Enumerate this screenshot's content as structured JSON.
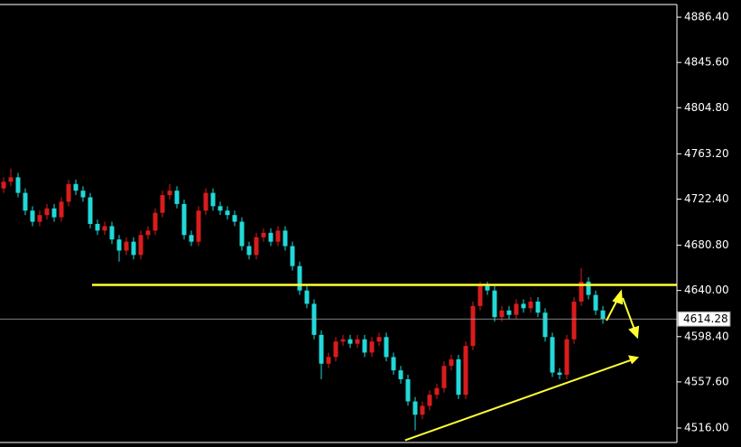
{
  "chart_data": {
    "type": "candlestick",
    "up_color": "#d91c1c",
    "down_color": "#22d8d8",
    "ylim": [
      4498.9,
      4901.9
    ],
    "yticks": [
      {
        "value": 4886.4,
        "label": "4886.40"
      },
      {
        "value": 4845.6,
        "label": "4845.60"
      },
      {
        "value": 4804.8,
        "label": "4804.80"
      },
      {
        "value": 4763.2,
        "label": "4763.20"
      },
      {
        "value": 4722.4,
        "label": "4722.40"
      },
      {
        "value": 4680.8,
        "label": "4680.80"
      },
      {
        "value": 4640,
        "label": "4640.00"
      },
      {
        "value": 4598.4,
        "label": "4598.40"
      },
      {
        "value": 4557.6,
        "label": "4557.60"
      },
      {
        "value": 4516,
        "label": "4516.00"
      }
    ],
    "open": [
      4732,
      4738,
      4742,
      4728,
      4712,
      4702,
      4708,
      4714,
      4706,
      4720,
      4736,
      4730,
      4724,
      4700,
      4694,
      4698,
      4686,
      4676,
      4684,
      4672,
      4690,
      4694,
      4710,
      4726,
      4730,
      4718,
      4690,
      4684,
      4712,
      4728,
      4716,
      4712,
      4708,
      4702,
      4680,
      4672,
      4688,
      4692,
      4684,
      4694,
      4680,
      4662,
      4640,
      4628,
      4600,
      4574,
      4580,
      4594,
      4596,
      4592,
      4596,
      4584,
      4594,
      4598,
      4580,
      4568,
      4560,
      4540,
      4528,
      4536,
      4546,
      4552,
      4572,
      4578,
      4546,
      4590,
      4626,
      4644,
      4640,
      4616,
      4622,
      4618,
      4628,
      4624,
      4630,
      4620,
      4598,
      4566,
      4564,
      4596,
      4630,
      4648,
      4636,
      4622
    ],
    "high": [
      4742,
      4750,
      4746,
      4732,
      4716,
      4712,
      4718,
      4718,
      4724,
      4740,
      4740,
      4734,
      4728,
      4704,
      4702,
      4702,
      4690,
      4688,
      4688,
      4694,
      4698,
      4714,
      4730,
      4736,
      4734,
      4722,
      4694,
      4716,
      4732,
      4732,
      4720,
      4716,
      4712,
      4706,
      4684,
      4692,
      4696,
      4696,
      4698,
      4698,
      4684,
      4666,
      4644,
      4632,
      4604,
      4584,
      4598,
      4600,
      4600,
      4600,
      4600,
      4598,
      4602,
      4602,
      4584,
      4572,
      4564,
      4544,
      4540,
      4550,
      4556,
      4576,
      4582,
      4582,
      4594,
      4630,
      4648,
      4648,
      4644,
      4626,
      4626,
      4632,
      4632,
      4634,
      4634,
      4624,
      4602,
      4570,
      4600,
      4634,
      4660,
      4652,
      4640,
      4626
    ],
    "low": [
      4728,
      4734,
      4724,
      4708,
      4698,
      4698,
      4704,
      4702,
      4702,
      4716,
      4726,
      4720,
      4696,
      4690,
      4690,
      4682,
      4666,
      4672,
      4668,
      4668,
      4686,
      4690,
      4706,
      4722,
      4714,
      4686,
      4680,
      4680,
      4708,
      4712,
      4708,
      4704,
      4698,
      4676,
      4668,
      4668,
      4684,
      4680,
      4680,
      4676,
      4658,
      4636,
      4624,
      4596,
      4560,
      4570,
      4576,
      4590,
      4588,
      4588,
      4580,
      4580,
      4590,
      4576,
      4564,
      4556,
      4536,
      4514,
      4524,
      4532,
      4542,
      4548,
      4568,
      4542,
      4542,
      4586,
      4622,
      4636,
      4612,
      4612,
      4614,
      4614,
      4620,
      4620,
      4616,
      4594,
      4562,
      4560,
      4560,
      4592,
      4626,
      4632,
      4618,
      4610
    ],
    "close": [
      4738,
      4742,
      4728,
      4712,
      4702,
      4708,
      4714,
      4706,
      4720,
      4736,
      4730,
      4724,
      4700,
      4694,
      4698,
      4686,
      4676,
      4684,
      4672,
      4690,
      4694,
      4710,
      4726,
      4730,
      4718,
      4690,
      4684,
      4712,
      4728,
      4716,
      4712,
      4708,
      4702,
      4680,
      4672,
      4688,
      4692,
      4684,
      4694,
      4680,
      4662,
      4640,
      4628,
      4600,
      4574,
      4580,
      4594,
      4596,
      4592,
      4596,
      4584,
      4594,
      4598,
      4580,
      4568,
      4560,
      4540,
      4528,
      4536,
      4546,
      4552,
      4572,
      4578,
      4546,
      4590,
      4626,
      4644,
      4640,
      4616,
      4622,
      4618,
      4628,
      4624,
      4630,
      4620,
      4598,
      4566,
      4564,
      4596,
      4630,
      4648,
      4636,
      4622,
      4614.28
    ],
    "level_line": {
      "value": 4645,
      "color": "#ffff33"
    },
    "trend_line": {
      "from": [
        55.6,
        4505
      ],
      "to": [
        88,
        4580
      ],
      "color": "#ffff33"
    }
  }
}
